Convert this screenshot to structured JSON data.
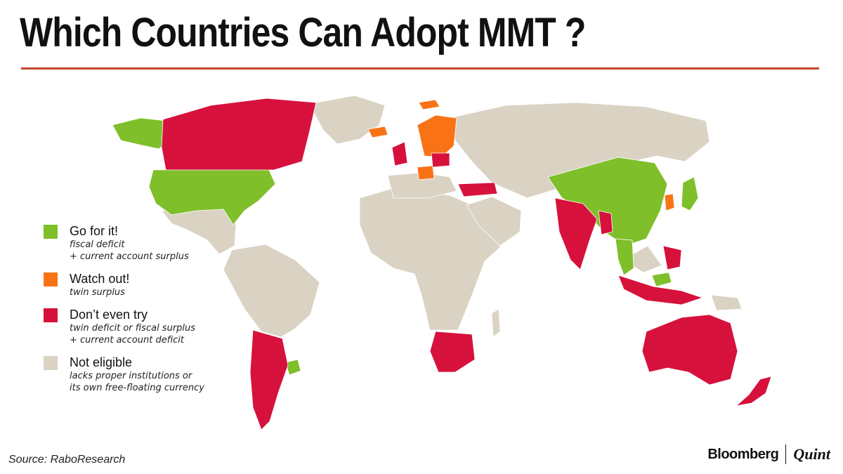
{
  "title": "Which Countries Can Adopt MMT ?",
  "colors": {
    "go": "#7fbf2a",
    "watch": "#f97316",
    "dont": "#d6123c",
    "not_eligible": "#dad3c4",
    "rule": "#c2462c"
  },
  "legend": [
    {
      "key": "go",
      "name": "Go for it!",
      "desc": [
        "fiscal deficit",
        "+ current account surplus"
      ]
    },
    {
      "key": "watch",
      "name": "Watch out!",
      "desc": [
        "twin surplus"
      ]
    },
    {
      "key": "dont",
      "name": "Don’t even try",
      "desc": [
        "twin deficit or fiscal surplus",
        "+ current account deficit"
      ]
    },
    {
      "key": "not_eligible",
      "name": "Not eligible",
      "desc": [
        "lacks proper institutions or",
        "its own free-floating currency"
      ]
    }
  ],
  "source": "Source: RaboResearch",
  "brand": {
    "primary": "Bloomberg",
    "secondary": "Quint"
  }
}
